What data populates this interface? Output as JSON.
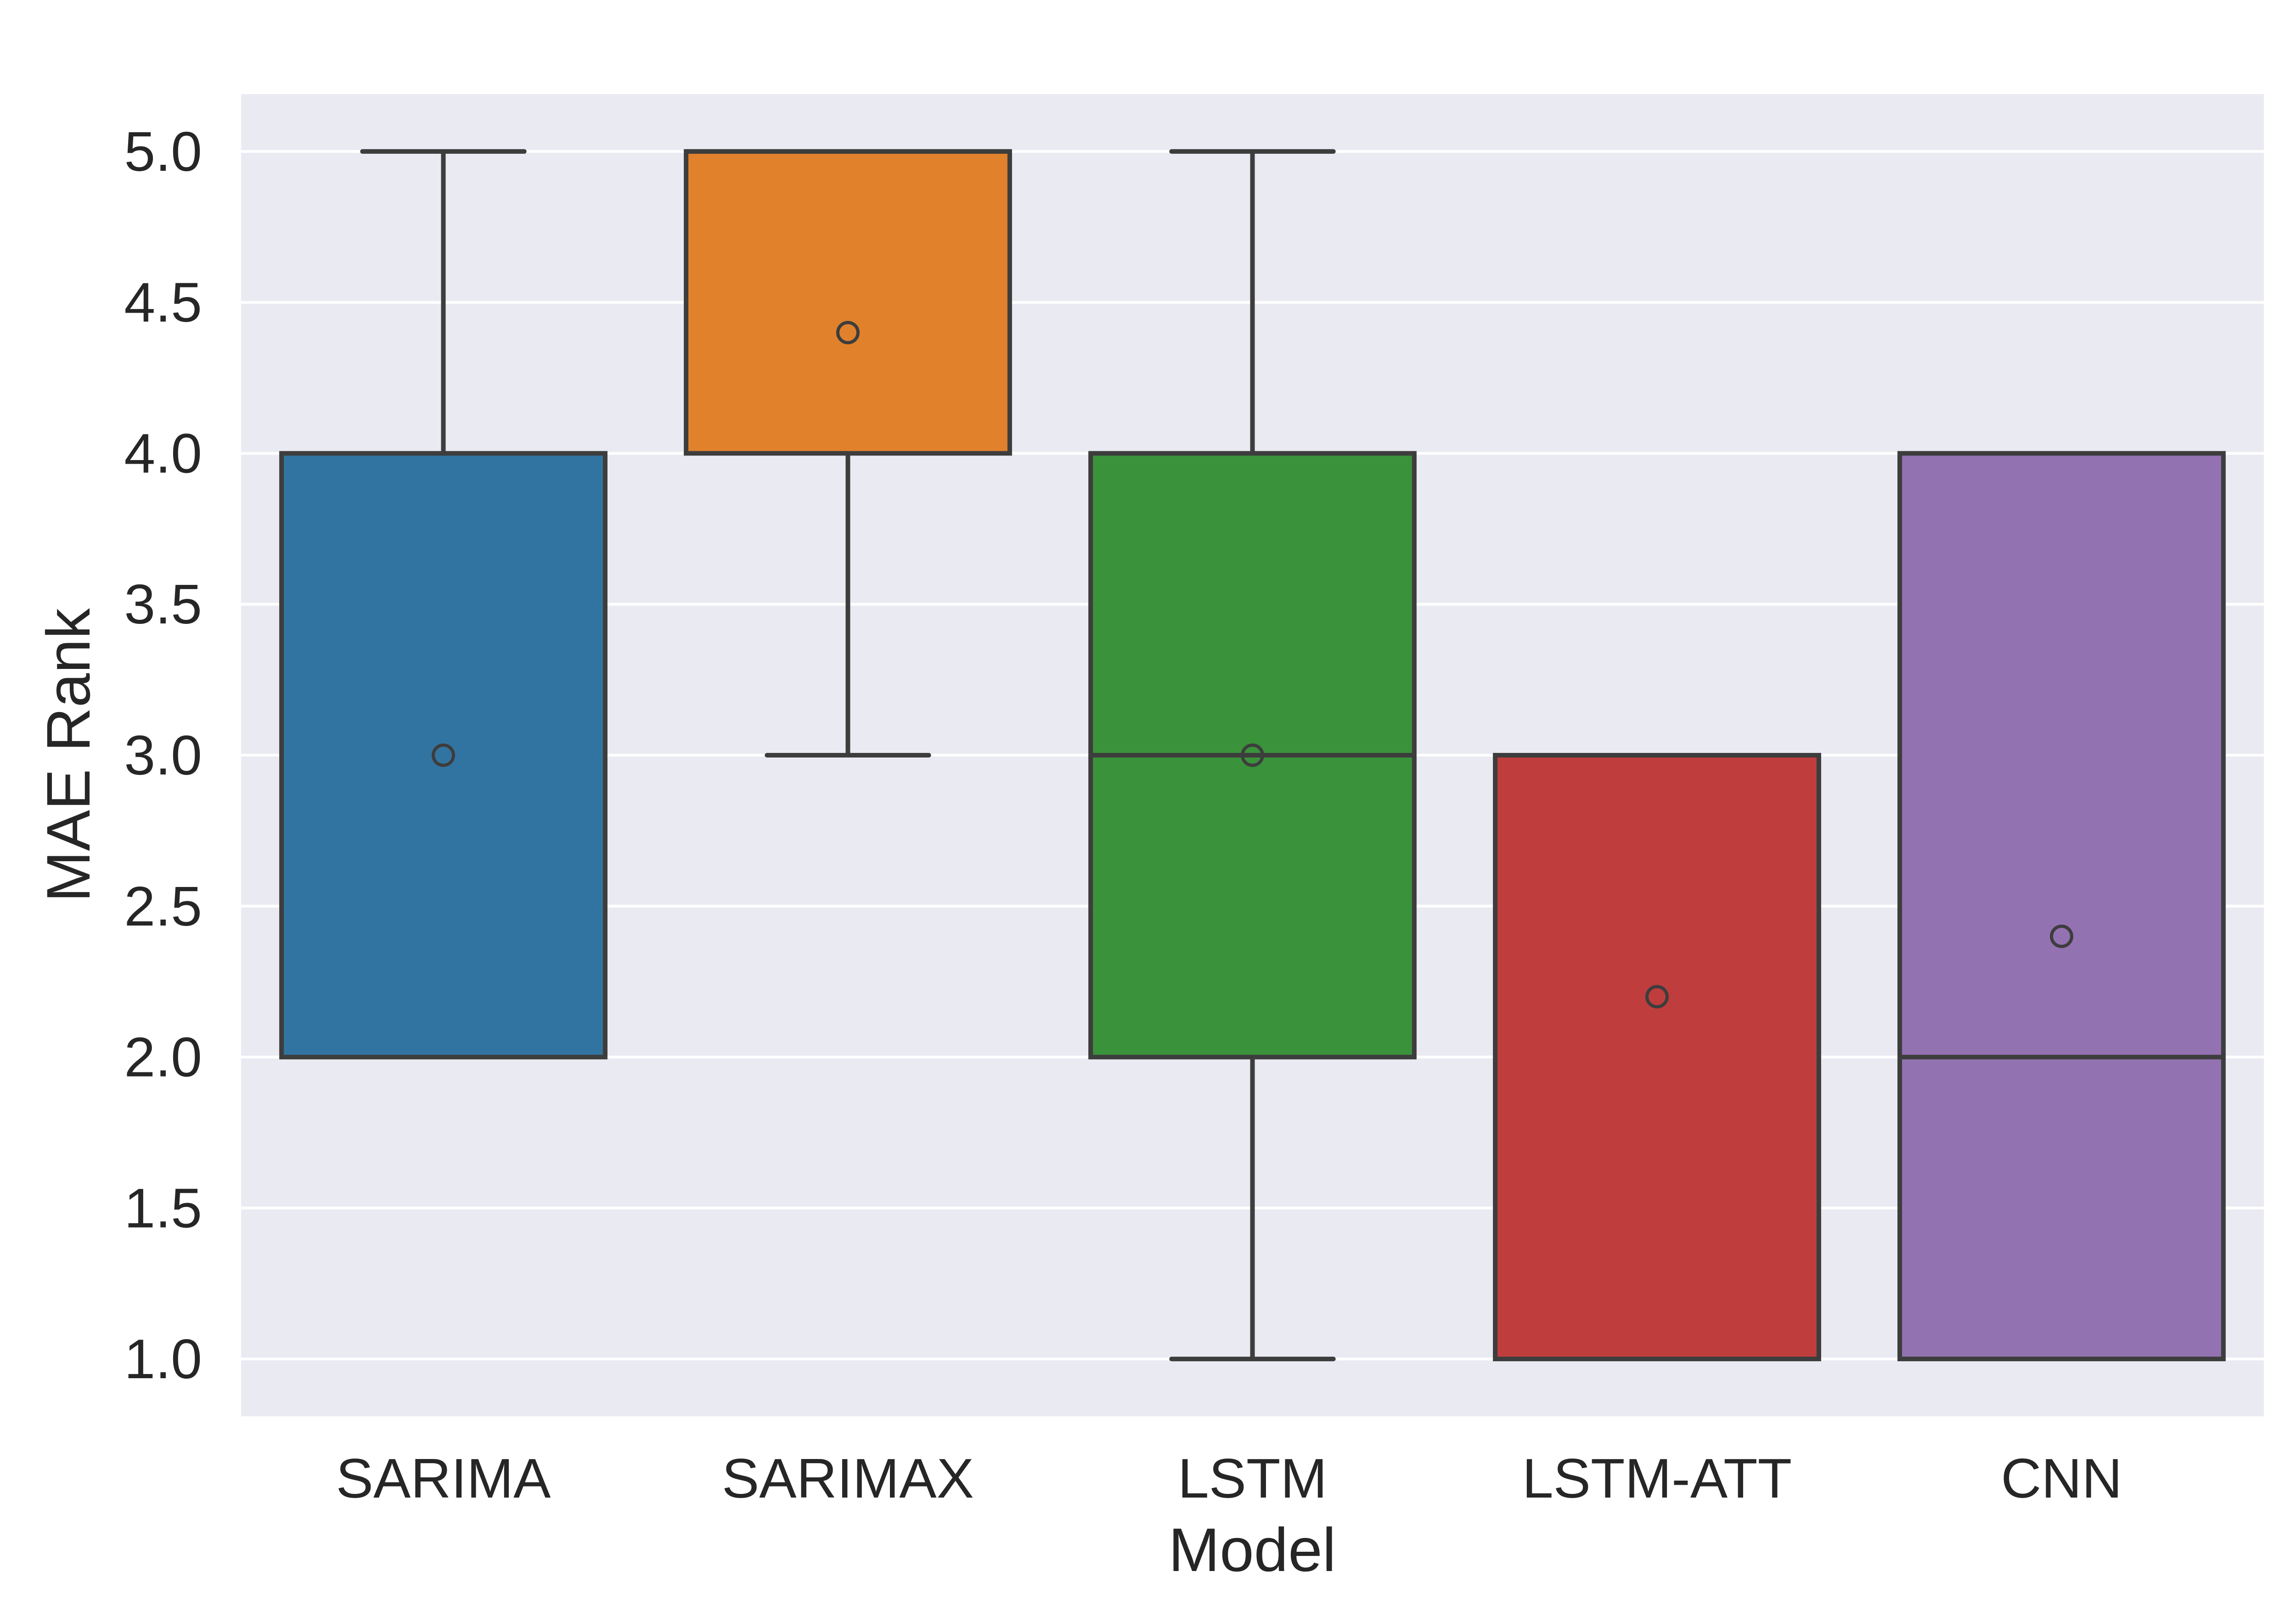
{
  "chart_data": {
    "type": "box",
    "xlabel": "Model",
    "ylabel": "MAE Rank",
    "ylim": [
      0.81,
      5.19
    ],
    "yticks": [
      "1.0",
      "1.5",
      "2.0",
      "2.5",
      "3.0",
      "3.5",
      "4.0",
      "4.5",
      "5.0"
    ],
    "grid": true,
    "categories": [
      "SARIMA",
      "SARIMAX",
      "LSTM",
      "LSTM-ATT",
      "CNN"
    ],
    "series": [
      {
        "category": "SARIMA",
        "color": "#3274a1",
        "whisker_low": 2,
        "q1": 2,
        "median": 2,
        "q3": 4,
        "whisker_high": 5,
        "mean": 3.0
      },
      {
        "category": "SARIMAX",
        "color": "#e1812c",
        "whisker_low": 3,
        "q1": 4,
        "median": 5,
        "q3": 5,
        "whisker_high": 5,
        "mean": 4.4
      },
      {
        "category": "LSTM",
        "color": "#3a923a",
        "whisker_low": 1,
        "q1": 2,
        "median": 3,
        "q3": 4,
        "whisker_high": 5,
        "mean": 3.0
      },
      {
        "category": "LSTM-ATT",
        "color": "#c03d3e",
        "whisker_low": 1,
        "q1": 1,
        "median": 3,
        "q3": 3,
        "whisker_high": 3,
        "mean": 2.2
      },
      {
        "category": "CNN",
        "color": "#9372b2",
        "whisker_low": 1,
        "q1": 1,
        "median": 2,
        "q3": 4,
        "whisker_high": 4,
        "mean": 2.4
      }
    ],
    "style": {
      "plot_background": "#eaeaf2",
      "grid_color": "#ffffff",
      "line_color": "#3d3d3d"
    }
  }
}
